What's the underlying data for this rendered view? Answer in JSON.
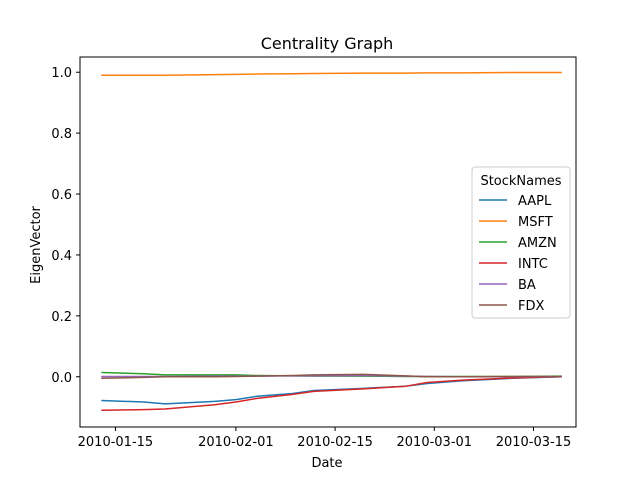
{
  "chart_data": {
    "type": "line",
    "title": "Centrality Graph",
    "xlabel": "Date",
    "ylabel": "EigenVector",
    "x": [
      "2010-01-13",
      "2010-01-19",
      "2010-01-22",
      "2010-01-29",
      "2010-02-01",
      "2010-02-04",
      "2010-02-09",
      "2010-02-12",
      "2010-02-19",
      "2010-02-25",
      "2010-02-28",
      "2010-03-05",
      "2010-03-12",
      "2010-03-19"
    ],
    "xlim": [
      "2010-01-10",
      "2010-03-21"
    ],
    "ylim": [
      -0.165,
      1.05
    ],
    "xticks": [
      "2010-01-15",
      "2010-02-01",
      "2010-02-15",
      "2010-03-01",
      "2010-03-15"
    ],
    "yticks": [
      0.0,
      0.2,
      0.4,
      0.6,
      0.8,
      1.0
    ],
    "ytick_labels": [
      "0.0",
      "0.2",
      "0.4",
      "0.6",
      "0.8",
      "1.0"
    ],
    "legend_title": "StockNames",
    "legend_position": "center-right",
    "grid": false,
    "series": [
      {
        "name": "AAPL",
        "color": "#1f77b4",
        "values": [
          -0.078,
          -0.083,
          -0.089,
          -0.081,
          -0.075,
          -0.064,
          -0.055,
          -0.045,
          -0.038,
          -0.031,
          -0.022,
          -0.013,
          -0.005,
          0.0
        ]
      },
      {
        "name": "MSFT",
        "color": "#ff7f0e",
        "values": [
          0.99,
          0.99,
          0.99,
          0.992,
          0.993,
          0.994,
          0.995,
          0.996,
          0.997,
          0.997,
          0.998,
          0.998,
          0.999,
          0.999
        ]
      },
      {
        "name": "AMZN",
        "color": "#2ca02c",
        "values": [
          0.014,
          0.01,
          0.006,
          0.006,
          0.006,
          0.004,
          0.003,
          0.002,
          0.002,
          0.001,
          0.001,
          0.001,
          0.001,
          0.002
        ]
      },
      {
        "name": "INTC",
        "color": "#d62728",
        "values": [
          -0.11,
          -0.108,
          -0.106,
          -0.092,
          -0.083,
          -0.071,
          -0.058,
          -0.048,
          -0.04,
          -0.031,
          -0.019,
          -0.011,
          -0.004,
          0.0
        ]
      },
      {
        "name": "BA",
        "color": "#9467bd",
        "values": [
          0.001,
          0.001,
          0.001,
          0.002,
          0.002,
          0.002,
          0.003,
          0.003,
          0.004,
          0.002,
          0.001,
          0.0,
          0.0,
          0.0
        ]
      },
      {
        "name": "FDX",
        "color": "#8c564b",
        "values": [
          -0.005,
          -0.002,
          0.0,
          0.0,
          0.001,
          0.002,
          0.004,
          0.006,
          0.008,
          0.003,
          0.0,
          0.0,
          0.001,
          0.001
        ]
      }
    ]
  }
}
